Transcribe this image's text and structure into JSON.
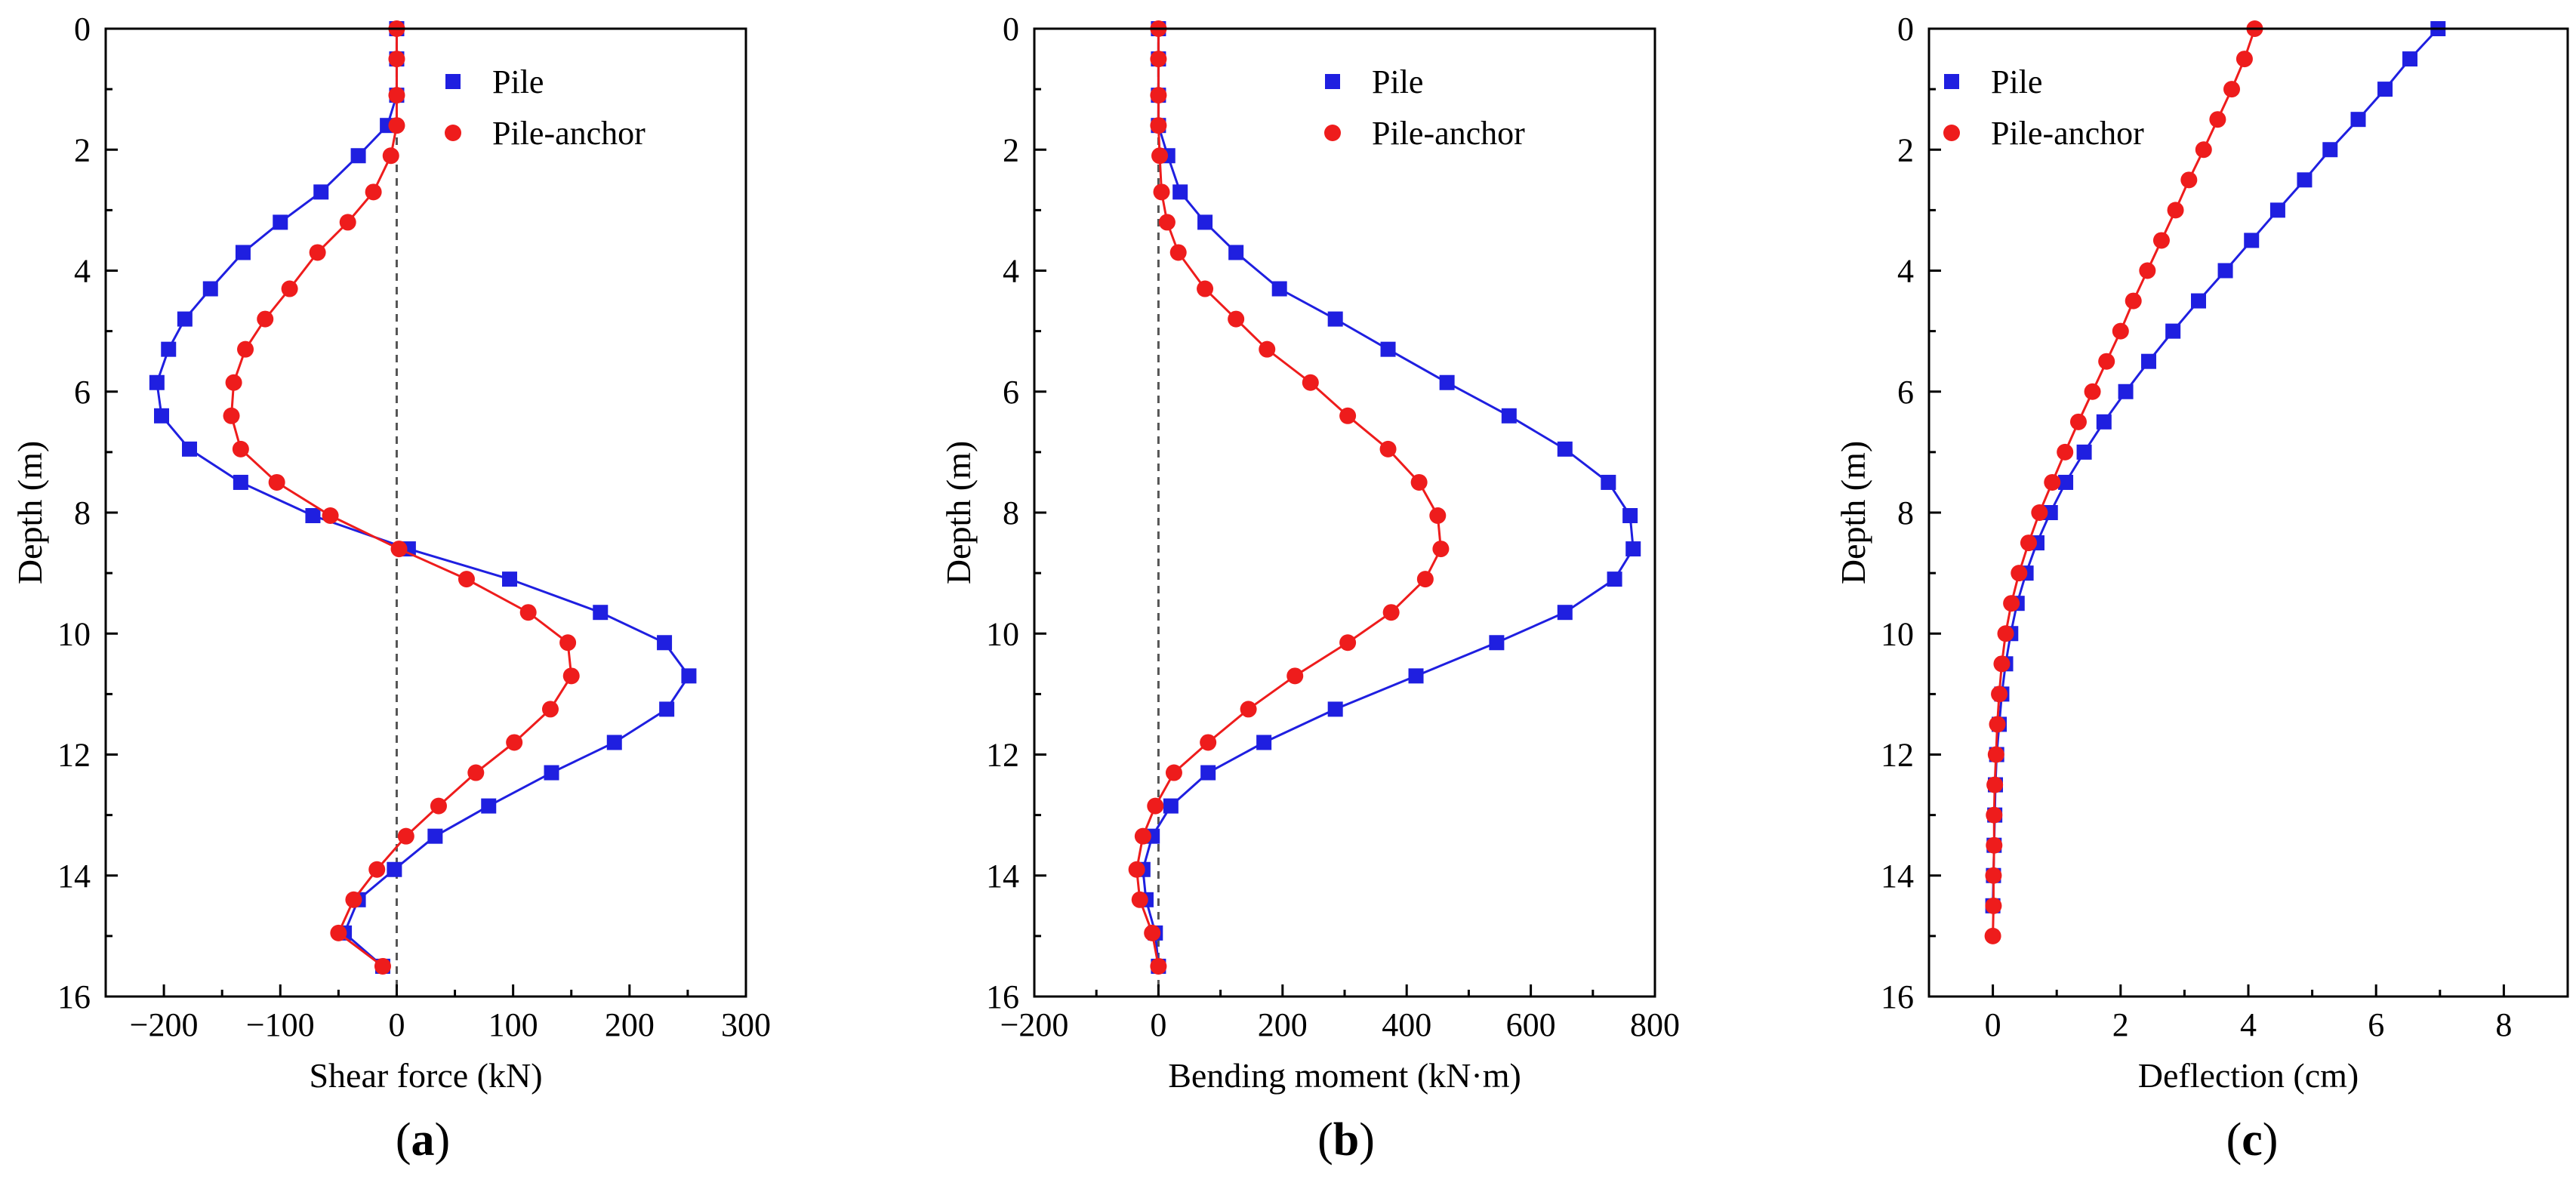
{
  "colors": {
    "pile": "#1f1fe0",
    "pile_anchor": "#ee1c1c",
    "axis": "#000000",
    "zero_line": "#555555"
  },
  "chart_data": [
    {
      "id": "a",
      "panel_label": "a",
      "type": "line",
      "xlabel": "Shear force (kN)",
      "ylabel": "Depth (m)",
      "xlim": [
        -250,
        300
      ],
      "ylim": [
        0,
        16
      ],
      "y_inverted": true,
      "xticks": [
        -200,
        -100,
        0,
        100,
        200,
        300
      ],
      "yticks": [
        0,
        2,
        4,
        6,
        8,
        10,
        12,
        14,
        16
      ],
      "zero_reference_line": true,
      "legend_position": "top-right",
      "series": [
        {
          "name": "Pile",
          "marker": "square",
          "color_key": "pile",
          "x": [
            0,
            0,
            0,
            -8,
            -33,
            -65,
            -100,
            -132,
            -160,
            -182,
            -196,
            -206,
            -202,
            -178,
            -134,
            -72,
            10,
            97,
            175,
            230,
            251,
            232,
            187,
            133,
            79,
            33,
            -2,
            -33,
            -45,
            -12
          ],
          "y": [
            0,
            0.5,
            1.1,
            1.6,
            2.1,
            2.7,
            3.2,
            3.7,
            4.3,
            4.8,
            5.3,
            5.85,
            6.4,
            6.95,
            7.5,
            8.05,
            8.6,
            9.1,
            9.65,
            10.15,
            10.7,
            11.25,
            11.8,
            12.3,
            12.85,
            13.35,
            13.9,
            14.4,
            14.95,
            15.5
          ]
        },
        {
          "name": "Pile-anchor",
          "marker": "circle",
          "color_key": "pile_anchor",
          "x": [
            0,
            0,
            0,
            0,
            -5,
            -20,
            -42,
            -68,
            -92,
            -113,
            -130,
            -140,
            -142,
            -134,
            -103,
            -57,
            2,
            60,
            113,
            147,
            150,
            132,
            101,
            68,
            36,
            8,
            -17,
            -37,
            -50,
            -12
          ],
          "y": [
            0,
            0.5,
            1.1,
            1.6,
            2.1,
            2.7,
            3.2,
            3.7,
            4.3,
            4.8,
            5.3,
            5.85,
            6.4,
            6.95,
            7.5,
            8.05,
            8.6,
            9.1,
            9.65,
            10.15,
            10.7,
            11.25,
            11.8,
            12.3,
            12.85,
            13.35,
            13.9,
            14.4,
            14.95,
            15.5
          ]
        }
      ]
    },
    {
      "id": "b",
      "panel_label": "b",
      "type": "line",
      "xlabel": "Bending moment (kN·m)",
      "ylabel": "Depth (m)",
      "xlim": [
        -200,
        800
      ],
      "ylim": [
        0,
        16
      ],
      "y_inverted": true,
      "xticks": [
        -200,
        0,
        200,
        400,
        600,
        800
      ],
      "yticks": [
        0,
        2,
        4,
        6,
        8,
        10,
        12,
        14,
        16
      ],
      "zero_reference_line": true,
      "legend_position": "top-right",
      "series": [
        {
          "name": "Pile",
          "marker": "square",
          "color_key": "pile",
          "x": [
            0,
            0,
            0,
            0,
            15,
            35,
            75,
            125,
            195,
            285,
            370,
            465,
            565,
            655,
            725,
            760,
            765,
            735,
            655,
            545,
            415,
            285,
            170,
            80,
            20,
            -10,
            -25,
            -20,
            -5,
            0
          ],
          "y": [
            0,
            0.5,
            1.1,
            1.6,
            2.1,
            2.7,
            3.2,
            3.7,
            4.3,
            4.8,
            5.3,
            5.85,
            6.4,
            6.95,
            7.5,
            8.05,
            8.6,
            9.1,
            9.65,
            10.15,
            10.7,
            11.25,
            11.8,
            12.3,
            12.85,
            13.35,
            13.9,
            14.4,
            14.95,
            15.5
          ]
        },
        {
          "name": "Pile-anchor",
          "marker": "circle",
          "color_key": "pile_anchor",
          "x": [
            0,
            0,
            0,
            0,
            2,
            5,
            14,
            32,
            75,
            125,
            175,
            245,
            305,
            370,
            420,
            450,
            455,
            430,
            375,
            305,
            220,
            145,
            80,
            25,
            -5,
            -25,
            -35,
            -30,
            -10,
            0
          ],
          "y": [
            0,
            0.5,
            1.1,
            1.6,
            2.1,
            2.7,
            3.2,
            3.7,
            4.3,
            4.8,
            5.3,
            5.85,
            6.4,
            6.95,
            7.5,
            8.05,
            8.6,
            9.1,
            9.65,
            10.15,
            10.7,
            11.25,
            11.8,
            12.3,
            12.85,
            13.35,
            13.9,
            14.4,
            14.95,
            15.5
          ]
        }
      ]
    },
    {
      "id": "c",
      "panel_label": "c",
      "type": "line",
      "xlabel": "Deflection (cm)",
      "ylabel": "Depth (m)",
      "xlim": [
        -1,
        9
      ],
      "ylim": [
        0,
        16
      ],
      "y_inverted": true,
      "xticks": [
        0,
        2,
        4,
        6,
        8
      ],
      "yticks": [
        0,
        2,
        4,
        6,
        8,
        10,
        12,
        14,
        16
      ],
      "zero_reference_line": false,
      "legend_position": "top-left",
      "series": [
        {
          "name": "Pile",
          "marker": "square",
          "color_key": "pile",
          "x": [
            6.97,
            6.53,
            6.14,
            5.72,
            5.28,
            4.88,
            4.46,
            4.05,
            3.64,
            3.22,
            2.82,
            2.44,
            2.08,
            1.74,
            1.43,
            1.14,
            0.9,
            0.69,
            0.52,
            0.38,
            0.28,
            0.2,
            0.14,
            0.1,
            0.06,
            0.04,
            0.03,
            0.02,
            0.01,
            0
          ],
          "y": [
            0,
            0.5,
            1.0,
            1.5,
            2.0,
            2.5,
            3.0,
            3.5,
            4.0,
            4.5,
            5.0,
            5.5,
            6.0,
            6.5,
            7.0,
            7.5,
            8.0,
            8.5,
            9.0,
            9.5,
            10.0,
            10.5,
            11.0,
            11.5,
            12.0,
            12.5,
            13.0,
            13.5,
            14.0,
            14.5
          ]
        },
        {
          "name": "Pile-anchor",
          "marker": "circle",
          "color_key": "pile_anchor",
          "x": [
            4.1,
            3.94,
            3.74,
            3.52,
            3.3,
            3.07,
            2.86,
            2.64,
            2.42,
            2.2,
            2.0,
            1.78,
            1.56,
            1.34,
            1.13,
            0.93,
            0.73,
            0.56,
            0.41,
            0.29,
            0.2,
            0.14,
            0.1,
            0.07,
            0.05,
            0.03,
            0.02,
            0.02,
            0.01,
            0.01,
            0
          ],
          "y": [
            0,
            0.5,
            1.0,
            1.5,
            2.0,
            2.5,
            3.0,
            3.5,
            4.0,
            4.5,
            5.0,
            5.5,
            6.0,
            6.5,
            7.0,
            7.5,
            8.0,
            8.5,
            9.0,
            9.5,
            10.0,
            10.5,
            11.0,
            11.5,
            12.0,
            12.5,
            13.0,
            13.5,
            14.0,
            14.5,
            15.0
          ]
        }
      ]
    }
  ]
}
